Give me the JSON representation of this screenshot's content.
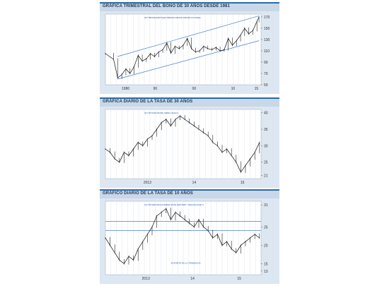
{
  "chart_data": [
    {
      "type": "line",
      "title": "GRÁFICA TRIMESTRAL DEL BONO DE 30 AÑOS DESDE 1981",
      "inner_label": "30YTBOND(CBOT)(EZ RBOND FBOND FBOND-FUTURE)",
      "x_ticks": [
        "1980",
        "90",
        "00",
        "10",
        "15"
      ],
      "y_ticks": [
        170,
        150,
        130,
        110,
        90,
        70,
        50
      ],
      "ylim": [
        50,
        175
      ],
      "x_range": [
        1978,
        2016
      ],
      "series": [
        {
          "values": [
            [
              1978,
              105
            ],
            [
              1980,
              95
            ],
            [
              1981,
              62
            ],
            [
              1982,
              68
            ],
            [
              1983,
              78
            ],
            [
              1984,
              70
            ],
            [
              1985,
              82
            ],
            [
              1986,
              102
            ],
            [
              1987,
              92
            ],
            [
              1988,
              96
            ],
            [
              1989,
              105
            ],
            [
              1990,
              100
            ],
            [
              1991,
              108
            ],
            [
              1992,
              112
            ],
            [
              1993,
              124
            ],
            [
              1994,
              106
            ],
            [
              1995,
              118
            ],
            [
              1996,
              114
            ],
            [
              1997,
              120
            ],
            [
              1998,
              132
            ],
            [
              1999,
              114
            ],
            [
              2000,
              108
            ],
            [
              2001,
              110
            ],
            [
              2002,
              118
            ],
            [
              2003,
              114
            ],
            [
              2004,
              112
            ],
            [
              2005,
              116
            ],
            [
              2006,
              110
            ],
            [
              2007,
              112
            ],
            [
              2008,
              132
            ],
            [
              2009,
              120
            ],
            [
              2010,
              128
            ],
            [
              2011,
              138
            ],
            [
              2012,
              150
            ],
            [
              2013,
              140
            ],
            [
              2014,
              146
            ],
            [
              2015,
              162
            ],
            [
              2015.5,
              170
            ]
          ]
        }
      ],
      "channel_upper": [
        [
          1981,
          100
        ],
        [
          2015.5,
          172
        ]
      ],
      "channel_lower": [
        [
          1981,
          60
        ],
        [
          2015.5,
          128
        ]
      ]
    },
    {
      "type": "line",
      "title": "GRÁFICA DIARIO DE LA TASA DE 30 AÑOS",
      "inner_label": "30YTRYMINI BOND INDEX (DAILY)",
      "x_ticks": [
        "2013",
        "14",
        "15"
      ],
      "y_ticks": [
        40,
        35,
        30,
        25,
        21
      ],
      "ylim": [
        20,
        41
      ],
      "x_range": [
        0,
        100
      ],
      "series": [
        {
          "values": [
            [
              0,
              29
            ],
            [
              3,
              28
            ],
            [
              6,
              26
            ],
            [
              9,
              25
            ],
            [
              12,
              28
            ],
            [
              15,
              27
            ],
            [
              18,
              29
            ],
            [
              21,
              31
            ],
            [
              24,
              30
            ],
            [
              27,
              32
            ],
            [
              30,
              33
            ],
            [
              33,
              35
            ],
            [
              36,
              37
            ],
            [
              39,
              38
            ],
            [
              42,
              36
            ],
            [
              45,
              38
            ],
            [
              48,
              39
            ],
            [
              51,
              38
            ],
            [
              54,
              37
            ],
            [
              57,
              36
            ],
            [
              60,
              35
            ],
            [
              63,
              34
            ],
            [
              66,
              33
            ],
            [
              69,
              31
            ],
            [
              72,
              30
            ],
            [
              75,
              28
            ],
            [
              78,
              29
            ],
            [
              81,
              27
            ],
            [
              84,
              25
            ],
            [
              87,
              22
            ],
            [
              90,
              24
            ],
            [
              93,
              26
            ],
            [
              96,
              28
            ],
            [
              99,
              31
            ]
          ]
        }
      ]
    },
    {
      "type": "line",
      "title": "GRÁFICO DIARIO DE LA TASA DE 10 AÑOS",
      "inner_label": "10YTRYRES BOLCHABLE RATE (BATTERY YIELDS) (DAILY)",
      "x_ticks": [
        "2013",
        "14",
        "15"
      ],
      "y_ticks": [
        31,
        25,
        20,
        15,
        13
      ],
      "ylim": [
        12,
        32
      ],
      "x_range": [
        0,
        100
      ],
      "h_levels": [
        26.5,
        24
      ],
      "annotation": "SOPORTE EN LA TENDENCIA",
      "series": [
        {
          "values": [
            [
              0,
              22
            ],
            [
              3,
              20
            ],
            [
              6,
              18
            ],
            [
              9,
              16
            ],
            [
              12,
              15
            ],
            [
              15,
              17
            ],
            [
              18,
              16
            ],
            [
              21,
              19
            ],
            [
              24,
              21
            ],
            [
              27,
              23
            ],
            [
              30,
              25
            ],
            [
              33,
              28
            ],
            [
              36,
              29
            ],
            [
              39,
              30
            ],
            [
              42,
              27
            ],
            [
              45,
              29
            ],
            [
              48,
              28
            ],
            [
              51,
              27
            ],
            [
              54,
              26
            ],
            [
              57,
              25
            ],
            [
              60,
              27
            ],
            [
              63,
              25
            ],
            [
              66,
              24
            ],
            [
              69,
              22
            ],
            [
              72,
              23
            ],
            [
              75,
              20
            ],
            [
              78,
              21
            ],
            [
              81,
              19
            ],
            [
              84,
              18
            ],
            [
              87,
              20
            ],
            [
              90,
              21
            ],
            [
              93,
              22
            ],
            [
              96,
              23
            ],
            [
              99,
              22
            ]
          ]
        }
      ]
    }
  ]
}
